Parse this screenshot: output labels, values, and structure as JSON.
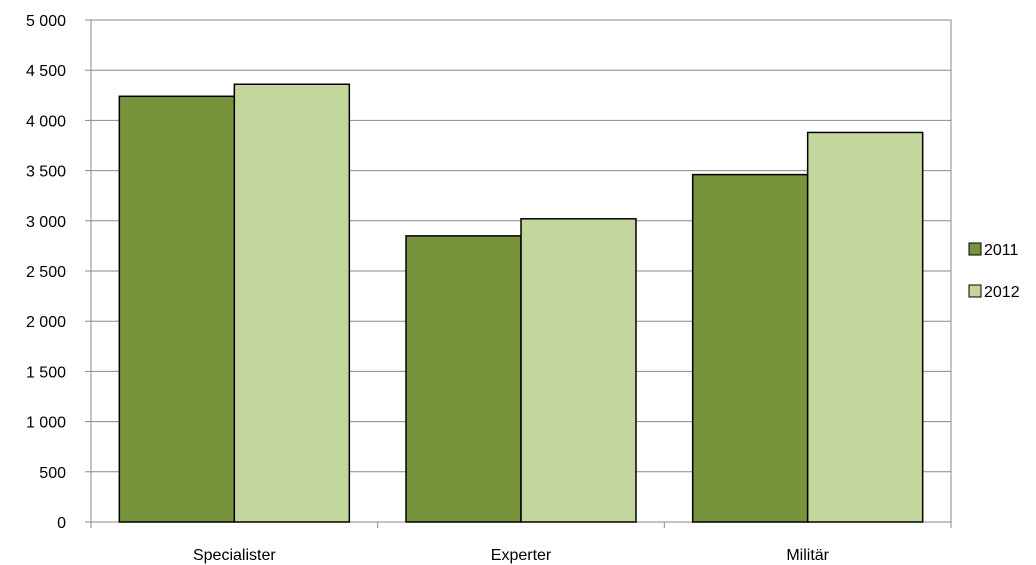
{
  "chart_data": {
    "type": "bar",
    "categories": [
      "Specialister",
      "Experter",
      "Militär"
    ],
    "series": [
      {
        "name": "2011",
        "values": [
          4240,
          2850,
          3460
        ],
        "color": "#77933c"
      },
      {
        "name": "2012",
        "values": [
          4360,
          3020,
          3880
        ],
        "color": "#c3d69b"
      }
    ],
    "ylim": [
      0,
      5000
    ],
    "yticks": [
      "0",
      "500",
      "1 000",
      "1 500",
      "2 000",
      "2 500",
      "3 000",
      "3 500",
      "4 000",
      "4 500",
      "5 000"
    ],
    "grid": true,
    "legend_position": "right",
    "title": "",
    "xlabel": "",
    "ylabel": ""
  }
}
